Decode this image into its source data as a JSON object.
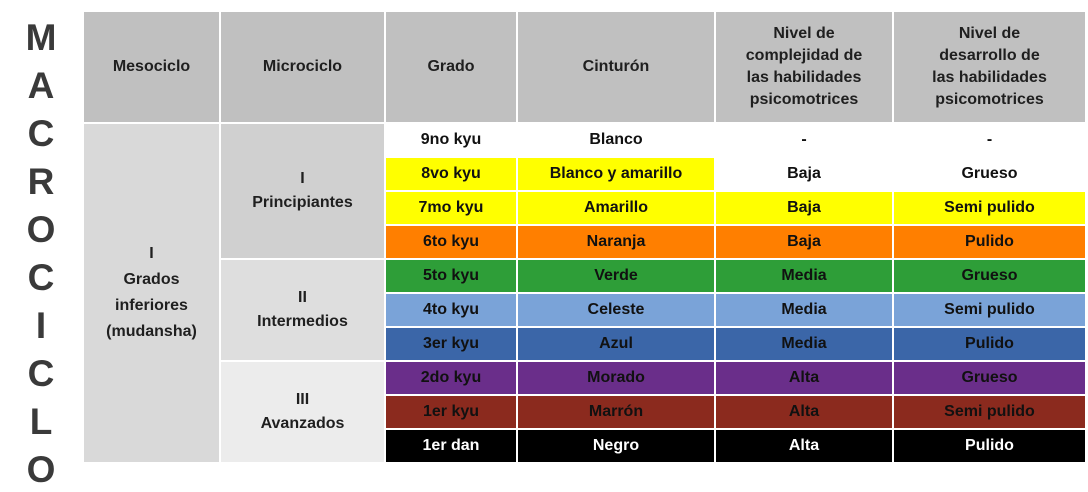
{
  "macro_letters": [
    "M",
    "A",
    "C",
    "R",
    "O",
    "C",
    "I",
    "C",
    "L",
    "O"
  ],
  "headers": {
    "mesociclo": "Mesociclo",
    "microciclo": "Microciclo",
    "grado": "Grado",
    "cinturon": "Cinturón",
    "complejidad": [
      "Nivel de",
      "complejidad de",
      "las habilidades",
      "psicomotrices"
    ],
    "desarrollo": [
      "Nivel de",
      "desarrollo de",
      "las habilidades",
      "psicomotrices"
    ]
  },
  "mesociclo": {
    "numeral": "I",
    "lines": [
      "Grados",
      "inferiores",
      "(mudansha)"
    ]
  },
  "microciclos": [
    {
      "numeral": "I",
      "label": "Principiantes"
    },
    {
      "numeral": "II",
      "label": "Intermedios"
    },
    {
      "numeral": "III",
      "label": "Avanzados"
    }
  ],
  "rows": [
    {
      "grado": "9no kyu",
      "cinturon": "Blanco",
      "complejidad": "-",
      "desarrollo": "-",
      "bg_left": "#ffffff",
      "bg_right": "#ffffff",
      "text_color": "#111111"
    },
    {
      "grado": "8vo kyu",
      "cinturon": "Blanco y amarillo",
      "complejidad": "Baja",
      "desarrollo": "Grueso",
      "bg_left": "#ffff00",
      "bg_right": "#ffffff",
      "text_color": "#111111"
    },
    {
      "grado": "7mo kyu",
      "cinturon": "Amarillo",
      "complejidad": "Baja",
      "desarrollo": "Semi pulido",
      "bg_left": "#ffff00",
      "bg_right": "#ffff00",
      "text_color": "#111111"
    },
    {
      "grado": "6to kyu",
      "cinturon": "Naranja",
      "complejidad": "Baja",
      "desarrollo": "Pulido",
      "bg_left": "#ff7f00",
      "bg_right": "#ff7f00",
      "text_color": "#111111"
    },
    {
      "grado": "5to kyu",
      "cinturon": "Verde",
      "complejidad": "Media",
      "desarrollo": "Grueso",
      "bg_left": "#2e9e38",
      "bg_right": "#2e9e38",
      "text_color": "#111111"
    },
    {
      "grado": "4to kyu",
      "cinturon": "Celeste",
      "complejidad": "Media",
      "desarrollo": "Semi pulido",
      "bg_left": "#7aa3d8",
      "bg_right": "#7aa3d8",
      "text_color": "#111111"
    },
    {
      "grado": "3er kyu",
      "cinturon": "Azul",
      "complejidad": "Media",
      "desarrollo": "Pulido",
      "bg_left": "#3b66a8",
      "bg_right": "#3b66a8",
      "text_color": "#111111"
    },
    {
      "grado": "2do kyu",
      "cinturon": "Morado",
      "complejidad": "Alta",
      "desarrollo": "Grueso",
      "bg_left": "#6a2e8a",
      "bg_right": "#6a2e8a",
      "text_color": "#111111"
    },
    {
      "grado": "1er kyu",
      "cinturon": "Marrón",
      "complejidad": "Alta",
      "desarrollo": "Semi pulido",
      "bg_left": "#8b2a1e",
      "bg_right": "#8b2a1e",
      "text_color": "#111111"
    },
    {
      "grado": "1er dan",
      "cinturon": "Negro",
      "complejidad": "Alta",
      "desarrollo": "Pulido",
      "bg_left": "#000000",
      "bg_right": "#000000",
      "text_color": "#ffffff"
    }
  ]
}
